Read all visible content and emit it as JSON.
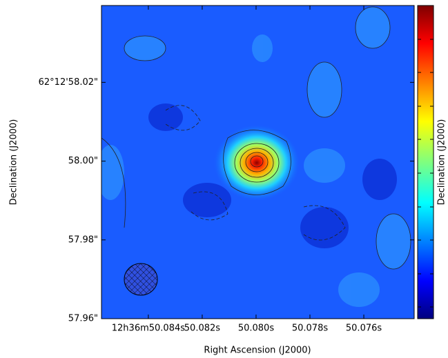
{
  "chart_data": {
    "type": "image",
    "x_label": "Right Ascension (J2000)",
    "y_label": "Declination (J2000)",
    "colorbar_label": "Declination (J2000)",
    "xlim": [
      50.08574,
      50.07413
    ],
    "xticks": [
      {
        "value": 50.084,
        "label": "12h36m50.084s"
      },
      {
        "value": 50.082,
        "label": "50.082s"
      },
      {
        "value": 50.08,
        "label": "50.080s"
      },
      {
        "value": 50.078,
        "label": "50.078s"
      },
      {
        "value": 50.076,
        "label": "50.076s"
      }
    ],
    "ylim": [
      57.96,
      58.0395
    ],
    "yticks": [
      {
        "value": 57.96,
        "label": "57.96\""
      },
      {
        "value": 57.98,
        "label": "57.98\""
      },
      {
        "value": 58.0,
        "label": "58.00\""
      },
      {
        "value": 58.02,
        "label": "62°12'58.02\""
      }
    ]
  }
}
